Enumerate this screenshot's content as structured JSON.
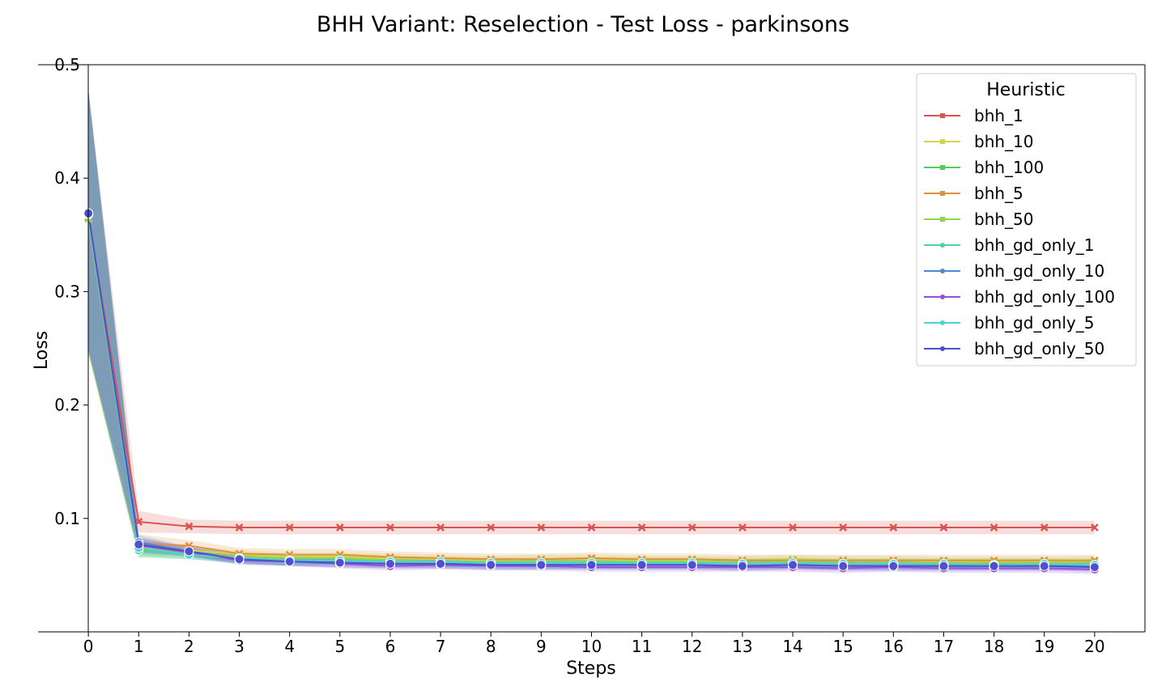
{
  "chart_data": {
    "type": "line",
    "title": "BHH Variant: Reselection - Test Loss - parkinsons",
    "xlabel": "Steps",
    "ylabel": "Loss",
    "xlim": [
      -1,
      21
    ],
    "ylim": [
      0.0,
      0.5
    ],
    "xticks": [
      "0",
      "1",
      "2",
      "3",
      "4",
      "5",
      "6",
      "7",
      "8",
      "9",
      "10",
      "11",
      "12",
      "13",
      "14",
      "15",
      "16",
      "17",
      "18",
      "19",
      "20"
    ],
    "yticks": [
      "0.1",
      "0.2",
      "0.3",
      "0.4",
      "0.5"
    ],
    "ytick_values": [
      0.1,
      0.2,
      0.3,
      0.4,
      0.5
    ],
    "grid": false,
    "legend": {
      "title": "Heuristic",
      "position": "top-right"
    },
    "x": [
      0,
      1,
      2,
      3,
      4,
      5,
      6,
      7,
      8,
      9,
      10,
      11,
      12,
      13,
      14,
      15,
      16,
      17,
      18,
      19,
      20
    ],
    "series": [
      {
        "name": "bhh_1",
        "color": "#d9534f",
        "marker": "x",
        "values": [
          0.366,
          0.097,
          0.093,
          0.092,
          0.092,
          0.092,
          0.092,
          0.092,
          0.092,
          0.092,
          0.092,
          0.092,
          0.092,
          0.092,
          0.092,
          0.092,
          0.092,
          0.092,
          0.092,
          0.092,
          0.092
        ],
        "band": 0.006
      },
      {
        "name": "bhh_10",
        "color": "#d4d44a",
        "marker": "x",
        "values": [
          0.364,
          0.074,
          0.072,
          0.068,
          0.066,
          0.066,
          0.065,
          0.064,
          0.063,
          0.064,
          0.064,
          0.063,
          0.063,
          0.063,
          0.064,
          0.063,
          0.063,
          0.062,
          0.062,
          0.062,
          0.063
        ],
        "band": 0.004
      },
      {
        "name": "bhh_100",
        "color": "#4fcf5a",
        "marker": "x",
        "values": [
          0.365,
          0.072,
          0.068,
          0.064,
          0.063,
          0.063,
          0.062,
          0.061,
          0.061,
          0.061,
          0.061,
          0.061,
          0.061,
          0.06,
          0.061,
          0.06,
          0.06,
          0.06,
          0.06,
          0.06,
          0.059
        ],
        "band": 0.004
      },
      {
        "name": "bhh_5",
        "color": "#e0913c",
        "marker": "x",
        "values": [
          0.366,
          0.078,
          0.076,
          0.069,
          0.068,
          0.068,
          0.066,
          0.065,
          0.064,
          0.064,
          0.065,
          0.064,
          0.064,
          0.063,
          0.063,
          0.063,
          0.063,
          0.063,
          0.063,
          0.063,
          0.063
        ],
        "band": 0.005
      },
      {
        "name": "bhh_50",
        "color": "#8fd64a",
        "marker": "x",
        "values": [
          0.365,
          0.073,
          0.07,
          0.066,
          0.065,
          0.065,
          0.063,
          0.062,
          0.062,
          0.062,
          0.062,
          0.062,
          0.062,
          0.061,
          0.062,
          0.061,
          0.061,
          0.061,
          0.061,
          0.061,
          0.061
        ],
        "band": 0.004
      },
      {
        "name": "bhh_gd_only_1",
        "color": "#4fd39a",
        "marker": "o",
        "values": [
          0.368,
          0.072,
          0.068,
          0.065,
          0.063,
          0.063,
          0.062,
          0.061,
          0.061,
          0.06,
          0.06,
          0.06,
          0.06,
          0.06,
          0.06,
          0.06,
          0.06,
          0.059,
          0.059,
          0.059,
          0.059
        ],
        "band": 0.004
      },
      {
        "name": "bhh_gd_only_10",
        "color": "#4a8ad8",
        "marker": "o",
        "values": [
          0.369,
          0.079,
          0.071,
          0.064,
          0.062,
          0.061,
          0.06,
          0.06,
          0.059,
          0.059,
          0.059,
          0.059,
          0.059,
          0.058,
          0.059,
          0.058,
          0.058,
          0.058,
          0.058,
          0.058,
          0.058
        ],
        "band": 0.004
      },
      {
        "name": "bhh_gd_only_100",
        "color": "#9b4fd8",
        "marker": "o",
        "values": [
          0.369,
          0.076,
          0.07,
          0.063,
          0.062,
          0.06,
          0.058,
          0.059,
          0.058,
          0.058,
          0.057,
          0.057,
          0.057,
          0.057,
          0.057,
          0.056,
          0.057,
          0.056,
          0.056,
          0.056,
          0.055
        ],
        "band": 0.004
      },
      {
        "name": "bhh_gd_only_5",
        "color": "#4ad2d6",
        "marker": "o",
        "values": [
          0.368,
          0.074,
          0.068,
          0.065,
          0.063,
          0.063,
          0.062,
          0.062,
          0.061,
          0.061,
          0.061,
          0.061,
          0.061,
          0.06,
          0.061,
          0.06,
          0.06,
          0.06,
          0.059,
          0.06,
          0.059
        ],
        "band": 0.004
      },
      {
        "name": "bhh_gd_only_50",
        "color": "#4f4fd0",
        "marker": "o",
        "values": [
          0.369,
          0.077,
          0.071,
          0.064,
          0.062,
          0.061,
          0.06,
          0.06,
          0.059,
          0.059,
          0.059,
          0.059,
          0.059,
          0.058,
          0.059,
          0.058,
          0.058,
          0.058,
          0.058,
          0.058,
          0.057
        ],
        "band": 0.004
      }
    ]
  }
}
